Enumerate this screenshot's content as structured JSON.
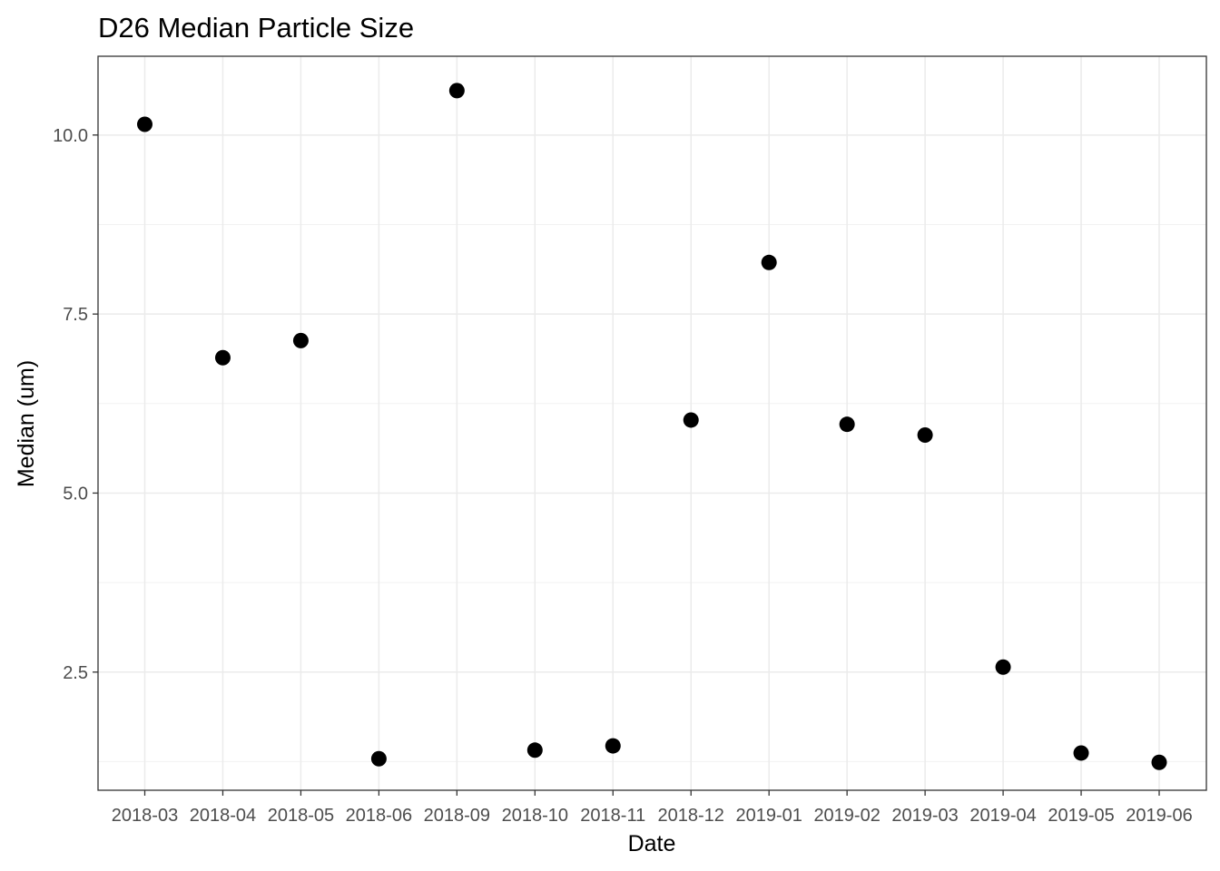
{
  "chart_data": {
    "type": "scatter",
    "title": "D26 Median Particle Size",
    "xlabel": "Date",
    "ylabel": "Median (um)",
    "categories": [
      "2018-03",
      "2018-04",
      "2018-05",
      "2018-06",
      "2018-09",
      "2018-10",
      "2018-11",
      "2018-12",
      "2019-01",
      "2019-02",
      "2019-03",
      "2019-04",
      "2019-05",
      "2019-06"
    ],
    "values": [
      10.15,
      6.89,
      7.13,
      1.29,
      10.62,
      1.41,
      1.47,
      6.02,
      8.22,
      5.96,
      5.81,
      2.57,
      1.37,
      1.24
    ],
    "ylim": [
      0.85,
      11.1
    ],
    "yticks": [
      2.5,
      5.0,
      7.5,
      10.0
    ],
    "ytick_labels": [
      "2.5",
      "5.0",
      "7.5",
      "10.0"
    ],
    "grid": true,
    "point_color": "#000000"
  }
}
